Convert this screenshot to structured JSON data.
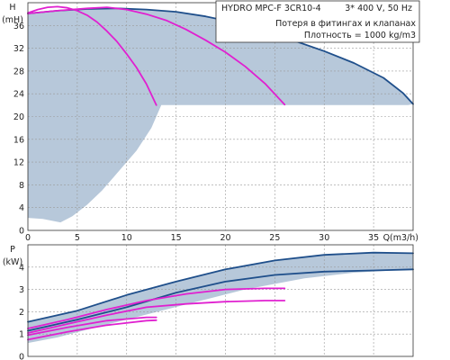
{
  "header": {
    "product": "HYDRO MPC-F 3CR10-4",
    "supply": "3* 400 V, 50 Hz",
    "note1": "Потеря в фитингах и клапанах",
    "note2": "Плотность = 1000 kg/m3"
  },
  "chart_data": [
    {
      "type": "line",
      "name": "head",
      "ylabel": "H",
      "yunit": "(mH)",
      "xunit": "Q(m3/h)",
      "xlim": [
        0,
        39
      ],
      "ylim": [
        0,
        40
      ],
      "xticks": [
        0,
        5,
        10,
        15,
        20,
        25,
        30,
        35
      ],
      "yticks": [
        0,
        4,
        8,
        12,
        16,
        20,
        24,
        28,
        32,
        36
      ],
      "grid": true,
      "operating_area": {
        "upper": [
          [
            0,
            38.1
          ],
          [
            3,
            38.6
          ],
          [
            6,
            38.9
          ],
          [
            9,
            39.0
          ],
          [
            12,
            38.8
          ],
          [
            15,
            38.4
          ],
          [
            18,
            37.6
          ],
          [
            21,
            36.5
          ],
          [
            24,
            35.0
          ],
          [
            27,
            33.3
          ],
          [
            30,
            31.5
          ],
          [
            33,
            29.4
          ],
          [
            36,
            26.8
          ],
          [
            38,
            24.1
          ],
          [
            39,
            22.2
          ]
        ],
        "lower": [
          [
            38.5,
            22
          ],
          [
            13.5,
            22
          ],
          [
            12.5,
            18
          ],
          [
            11,
            14
          ],
          [
            9,
            10
          ],
          [
            7.5,
            7
          ],
          [
            6,
            4.5
          ],
          [
            4.5,
            2.5
          ],
          [
            3.3,
            1.4
          ],
          [
            1.5,
            2
          ],
          [
            0,
            2.2
          ]
        ]
      },
      "series": [
        {
          "color": "#1f4f8b",
          "points": [
            [
              0,
              38.1
            ],
            [
              3,
              38.6
            ],
            [
              6,
              38.9
            ],
            [
              9,
              39.0
            ],
            [
              12,
              38.8
            ],
            [
              15,
              38.4
            ],
            [
              18,
              37.6
            ],
            [
              21,
              36.5
            ],
            [
              24,
              35.0
            ],
            [
              27,
              33.3
            ],
            [
              30,
              31.5
            ],
            [
              33,
              29.4
            ],
            [
              36,
              26.8
            ],
            [
              38,
              24.1
            ],
            [
              39,
              22.2
            ]
          ]
        },
        {
          "color": "#e020d0",
          "points": [
            [
              0,
              38.2
            ],
            [
              1,
              38.8
            ],
            [
              2,
              39.2
            ],
            [
              3,
              39.3
            ],
            [
              4,
              39.1
            ],
            [
              5,
              38.6
            ],
            [
              6,
              37.8
            ],
            [
              7,
              36.6
            ],
            [
              8,
              35.0
            ],
            [
              9,
              33.2
            ],
            [
              10,
              31.0
            ],
            [
              11,
              28.6
            ],
            [
              12,
              25.7
            ],
            [
              13,
              22.0
            ]
          ]
        },
        {
          "color": "#e020d0",
          "points": [
            [
              0,
              38.1
            ],
            [
              3,
              38.6
            ],
            [
              6,
              39.0
            ],
            [
              8,
              39.2
            ],
            [
              10,
              38.8
            ],
            [
              12,
              38.0
            ],
            [
              14,
              36.9
            ],
            [
              16,
              35.3
            ],
            [
              18,
              33.4
            ],
            [
              20,
              31.3
            ],
            [
              22,
              28.8
            ],
            [
              24,
              25.8
            ],
            [
              26,
              22.1
            ]
          ]
        }
      ]
    },
    {
      "type": "line",
      "name": "power",
      "ylabel": "P",
      "yunit": "(kW)",
      "xlim": [
        0,
        39
      ],
      "ylim": [
        0,
        5
      ],
      "xticks": [
        0,
        5,
        10,
        15,
        20,
        25,
        30,
        35
      ],
      "yticks": [
        0,
        1,
        2,
        3,
        4
      ],
      "grid": true,
      "operating_area": {
        "upper": [
          [
            0,
            1.55
          ],
          [
            5,
            2.05
          ],
          [
            10,
            2.75
          ],
          [
            15,
            3.35
          ],
          [
            20,
            3.9
          ],
          [
            25,
            4.3
          ],
          [
            30,
            4.55
          ],
          [
            35,
            4.65
          ],
          [
            39,
            4.62
          ]
        ],
        "lower": [
          [
            39,
            3.9
          ],
          [
            33,
            3.75
          ],
          [
            28,
            3.5
          ],
          [
            22,
            3.0
          ],
          [
            18,
            2.55
          ],
          [
            14,
            2.1
          ],
          [
            10,
            1.65
          ],
          [
            6,
            1.2
          ],
          [
            3,
            0.85
          ],
          [
            0,
            0.6
          ]
        ]
      },
      "series": [
        {
          "color": "#1f4f8b",
          "points": [
            [
              0,
              1.55
            ],
            [
              5,
              2.05
            ],
            [
              10,
              2.75
            ],
            [
              15,
              3.35
            ],
            [
              20,
              3.9
            ],
            [
              25,
              4.3
            ],
            [
              30,
              4.55
            ],
            [
              35,
              4.65
            ],
            [
              39,
              4.62
            ]
          ]
        },
        {
          "color": "#1f4f8b",
          "points": [
            [
              0,
              1.15
            ],
            [
              5,
              1.65
            ],
            [
              10,
              2.2
            ],
            [
              15,
              2.85
            ],
            [
              20,
              3.35
            ],
            [
              25,
              3.65
            ],
            [
              30,
              3.8
            ],
            [
              35,
              3.85
            ],
            [
              39,
              3.9
            ]
          ]
        },
        {
          "color": "#e020d0",
          "points": [
            [
              0,
              1.05
            ],
            [
              4,
              1.45
            ],
            [
              8,
              1.85
            ],
            [
              12,
              2.2
            ],
            [
              16,
              2.35
            ],
            [
              20,
              2.45
            ],
            [
              24,
              2.5
            ],
            [
              26,
              2.5
            ]
          ]
        },
        {
          "color": "#e020d0",
          "points": [
            [
              0,
              0.75
            ],
            [
              4,
              1.1
            ],
            [
              8,
              1.4
            ],
            [
              12,
              1.6
            ],
            [
              13,
              1.62
            ]
          ]
        },
        {
          "color": "#e020d0",
          "points": [
            [
              0,
              1.25
            ],
            [
              4,
              1.65
            ],
            [
              8,
              2.1
            ],
            [
              12,
              2.5
            ],
            [
              16,
              2.8
            ],
            [
              20,
              3.0
            ],
            [
              24,
              3.05
            ],
            [
              26,
              3.05
            ]
          ]
        },
        {
          "color": "#e020d0",
          "points": [
            [
              0,
              0.95
            ],
            [
              4,
              1.3
            ],
            [
              8,
              1.6
            ],
            [
              12,
              1.75
            ],
            [
              13,
              1.75
            ]
          ]
        }
      ]
    }
  ],
  "colors": {
    "area": "#b7c8da",
    "pump_curve": "#1f4f8b",
    "system_curve": "#e020d0"
  }
}
